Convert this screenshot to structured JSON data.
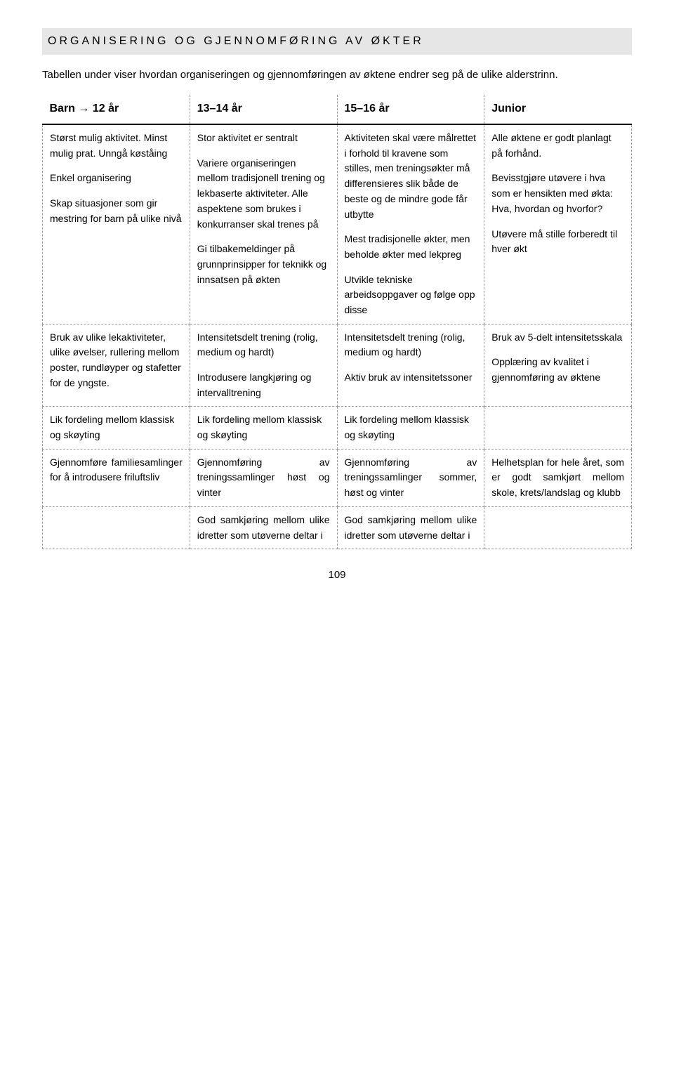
{
  "header": "ORGANISERING OG GJENNOMFØRING AV ØKTER",
  "intro": "Tabellen under viser hvordan organiseringen og gjennomføringen av øktene endrer seg på de ulike alderstrinn.",
  "columns": {
    "c1": "Barn → 12 år",
    "c2": "13–14 år",
    "c3": "15–16 år",
    "c4": "Junior"
  },
  "rows": [
    {
      "c1": [
        "Størst mulig aktivitet. Minst mulig prat. Unngå køståing",
        "Enkel organisering",
        "Skap situasjoner som gir mestring for barn på ulike nivå"
      ],
      "c2": [
        "Stor aktivitet er sentralt",
        "Variere organiseringen mellom tradisjonell trening og lekbaserte aktiviteter. Alle aspektene som brukes i konkurranser skal trenes på",
        "Gi tilbakemeldinger på grunnprinsipper for teknikk og innsatsen på økten"
      ],
      "c3": [
        "Aktiviteten skal være målrettet i forhold til kravene som stilles, men treningsøkter må differensieres slik både de beste og de mindre gode får utbytte",
        "Mest tradisjonelle økter, men beholde økter med lekpreg",
        "Utvikle tekniske arbeidsoppgaver og følge opp disse"
      ],
      "c4": [
        "Alle øktene er godt planlagt på forhånd.",
        "Bevisstgjøre utøvere i hva som er hensikten med økta: Hva, hvordan og hvorfor?",
        "Utøvere må stille forberedt til hver økt"
      ]
    },
    {
      "c1": [
        "Bruk av ulike lekaktiviteter, ulike øvelser, rullering mellom poster, rundløyper og stafetter for de yngste."
      ],
      "c2": [
        "Intensitetsdelt trening (rolig, medium og hardt)",
        "Introdusere langkjøring og intervalltrening"
      ],
      "c3": [
        "Intensitetsdelt trening (rolig, medium og hardt)",
        "Aktiv bruk av intensitetssoner"
      ],
      "c4": [
        "Bruk av 5-delt intensitetsskala",
        "Opplæring av kvalitet i gjennomføring av øktene"
      ]
    },
    {
      "c1": [
        "Lik fordeling mellom klassisk og skøyting"
      ],
      "c2": [
        "Lik fordeling mellom klassisk og skøyting"
      ],
      "c3": [
        "Lik fordeling mellom klassisk og skøyting"
      ],
      "c4": []
    },
    {
      "c1": [
        "Gjennomføre familiesamlinger for å introdusere friluftsliv"
      ],
      "c2": [
        "Gjennomføring av treningssamlinger høst og vinter"
      ],
      "c3": [
        "Gjennomføring av treningssamlinger sommer, høst og vinter"
      ],
      "c4": [
        "Helhetsplan for hele året, som er godt samkjørt mellom skole, krets/landslag og klubb"
      ]
    },
    {
      "c1": [],
      "c2": [
        "God samkjøring mellom ulike idretter som utøverne deltar i"
      ],
      "c3": [
        "God samkjøring mellom ulike idretter som utøverne deltar i"
      ],
      "c4": []
    }
  ],
  "pageNumber": "109",
  "colors": {
    "headerBg": "#e6e6e6",
    "border": "#999999",
    "text": "#000000",
    "bg": "#ffffff"
  },
  "layout": {
    "pageWidth": 960,
    "pageHeight": 1522,
    "tableCols": 4,
    "tableRows": 5,
    "fontSizeBody": 14,
    "fontSizeHeader": 16,
    "letterSpacingHeader": 4
  }
}
